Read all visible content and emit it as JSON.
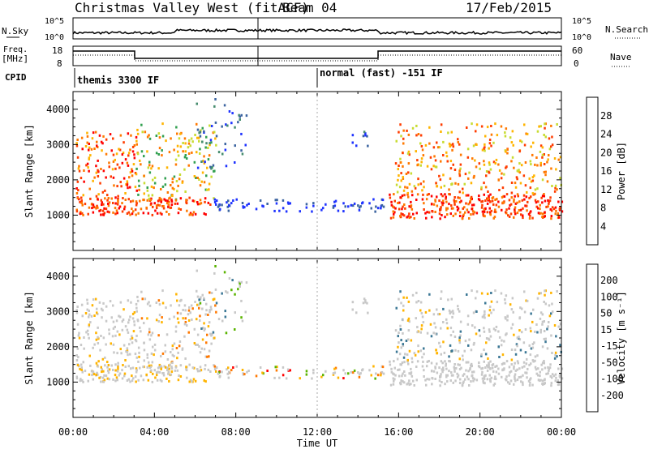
{
  "header": {
    "title": "Christmas Valley West (fitACF)",
    "beam": "Beam 04",
    "date": "17/Feb/2015"
  },
  "top_panels": {
    "nsky": {
      "label": "N.Sky",
      "ticks": [
        "10^5",
        "10^0"
      ]
    },
    "nsearch": {
      "label": "N.Search",
      "ticks": [
        "10^5",
        "10^0"
      ]
    },
    "freq": {
      "label_line1": "Freq.",
      "label_line2": "[MHz]",
      "ticks": [
        "18",
        "8"
      ]
    },
    "nave": {
      "label": "Nave",
      "ticks": [
        "60",
        "0"
      ]
    },
    "cpid": {
      "label": "CPID",
      "mode1": "themis 3300 IF",
      "mode2": "normal (fast) -151 IF"
    }
  },
  "colors": {
    "power": [
      "#1e32ff",
      "#3c64a0",
      "#468c6e",
      "#32a050",
      "#c8dc32",
      "#ffb400",
      "#ff7800",
      "#ff3c00",
      "#ff0000"
    ],
    "velocity": [
      "#ff0000",
      "#ff7800",
      "#ffb400",
      "#c8c8c8",
      "#c8c8c8",
      "#5ab400",
      "#3c7896",
      "#1e32c8"
    ],
    "ground": "#c8c8c8"
  },
  "chart_data": [
    {
      "type": "heatmap",
      "panel": "power",
      "ylabel": "Slant Range [km]",
      "yticks": [
        "1000",
        "2000",
        "3000",
        "4000"
      ],
      "colorbar_label": "Power [dB]",
      "colorbar_ticks": [
        "28",
        "24",
        "20",
        "16",
        "12",
        "8",
        "4"
      ],
      "scale_range": [
        0,
        32
      ],
      "xticks": [
        "00:00",
        "04:00",
        "08:00",
        "12:00",
        "16:00",
        "20:00",
        "00:00"
      ],
      "xlabel": "Time UT"
    },
    {
      "type": "heatmap",
      "panel": "velocity",
      "ylabel": "Slant Range [km]",
      "yticks": [
        "1000",
        "2000",
        "3000",
        "4000"
      ],
      "colorbar_label": "Velocity [m s⁻¹]",
      "colorbar_ticks": [
        "200",
        "100",
        "50",
        "15",
        "-15",
        "-50",
        "-100",
        "-200"
      ],
      "xticks": [
        "00:00",
        "04:00",
        "08:00",
        "12:00",
        "16:00",
        "20:00",
        "00:00"
      ],
      "xlabel": "Time UT"
    }
  ]
}
